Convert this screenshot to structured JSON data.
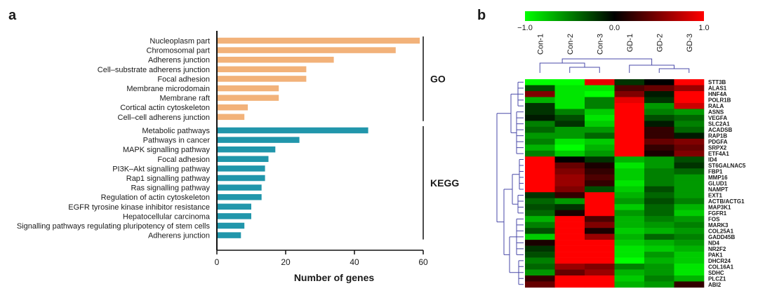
{
  "panels": {
    "a": "a",
    "b": "b"
  },
  "chart_data": [
    {
      "type": "bar",
      "panel": "a",
      "orientation": "horizontal",
      "xlabel": "Number of genes",
      "xlim": [
        0,
        60
      ],
      "xticks": [
        "0",
        "20",
        "40",
        "60"
      ],
      "groups": [
        {
          "name": "GO",
          "color": "#f2b27a",
          "categories": [
            "Nucleoplasm part",
            "Chromosomal part",
            "Adherens junction",
            "Cell–substrate adherens junction",
            "Focal adhesion",
            "Membrane microdomain",
            "Membrane raft",
            "Cortical actin cytoskeleton",
            "Cell–cell adherens junction"
          ],
          "values": [
            59,
            52,
            34,
            26,
            26,
            18,
            18,
            9,
            8
          ]
        },
        {
          "name": "KEGG",
          "color": "#2196ab",
          "categories": [
            "Metabolic pathways",
            "Pathways in cancer",
            "MAPK signalling pathway",
            "Focal adhesion",
            "PI3K–Akt signalling pathway",
            "Rap1 signalling pathway",
            "Ras signalling pathway",
            "Regulation of actin cytoskeleton",
            "EGFR tyrosine kinase inhibitor resistance",
            "Hepatocellular carcinoma",
            "Signalling pathways regulating pluripotency of stem cells",
            "Adherens junction"
          ],
          "values": [
            44,
            24,
            17,
            15,
            14,
            14,
            13,
            13,
            10,
            10,
            8,
            7
          ]
        }
      ]
    },
    {
      "type": "heatmap",
      "panel": "b",
      "colorbar": {
        "min_label": "−1.0",
        "mid_label": "0.0",
        "max_label": "1.0",
        "range": [
          -1,
          1
        ],
        "colors": [
          "#00ff00",
          "#000000",
          "#ff0000"
        ]
      },
      "columns": [
        "Con-1",
        "Con-2",
        "Con-3",
        "GD-1",
        "GD-2",
        "GD-3"
      ],
      "rows": [
        "STT3B",
        "ALAS1",
        "HNF4A",
        "POLR1B",
        "RALA",
        "ASNS",
        "VEGFA",
        "SLC2A1",
        "ACADSB",
        "RAP1B",
        "PDGFA",
        "SRPX2",
        "ETF4A1",
        "ID4",
        "ST6GALNAC5",
        "FBP1",
        "MMP16",
        "GLUD1",
        "NAMPT",
        "EXT1",
        "ACTB/ACTG1",
        "MAP3K1",
        "FGFR1",
        "FOS",
        "MARK3",
        "COL25A1",
        "GADD45B",
        "ND4",
        "NR2F2",
        "PAK1",
        "DHCR24",
        "COL16A1",
        "SDHC",
        "PLCZ1",
        "ABI2"
      ],
      "values": [
        [
          -1.0,
          -1.0,
          0.9,
          -0.2,
          0.0,
          1.0
        ],
        [
          -0.3,
          -0.9,
          -0.9,
          0.3,
          0.4,
          0.6
        ],
        [
          0.5,
          -0.9,
          -1.0,
          0.5,
          -0.1,
          1.0
        ],
        [
          -0.7,
          -0.9,
          -0.5,
          0.9,
          -0.2,
          1.0
        ],
        [
          -0.2,
          -0.9,
          -0.5,
          1.0,
          -0.6,
          0.8
        ],
        [
          -0.2,
          -0.5,
          -0.8,
          1.0,
          -0.5,
          -0.6
        ],
        [
          -0.1,
          -0.3,
          -0.9,
          1.0,
          -0.3,
          -0.4
        ],
        [
          -0.5,
          -0.2,
          -0.8,
          1.0,
          -0.1,
          -0.5
        ],
        [
          -0.4,
          -0.6,
          -0.6,
          1.0,
          0.2,
          -0.4
        ],
        [
          -0.6,
          -0.6,
          -0.4,
          1.0,
          0.2,
          -0.1
        ],
        [
          -0.5,
          -0.9,
          -0.8,
          1.0,
          0.4,
          0.5
        ],
        [
          -0.7,
          -1.0,
          -0.7,
          1.0,
          0.2,
          0.4
        ],
        [
          -0.5,
          -0.8,
          -0.6,
          1.0,
          0.1,
          0.5
        ],
        [
          1.0,
          0.0,
          -0.2,
          -0.7,
          -0.6,
          -0.3
        ],
        [
          1.0,
          0.4,
          0.1,
          -0.9,
          -0.6,
          -0.2
        ],
        [
          1.0,
          0.5,
          0.2,
          -0.8,
          -0.5,
          -0.4
        ],
        [
          1.0,
          0.6,
          0.3,
          -0.8,
          -0.5,
          -0.6
        ],
        [
          1.0,
          0.6,
          0.2,
          -0.9,
          -0.5,
          -0.6
        ],
        [
          1.0,
          0.5,
          -0.3,
          -0.8,
          -0.3,
          -0.6
        ],
        [
          -0.2,
          0.2,
          1.0,
          -0.7,
          -0.4,
          -0.6
        ],
        [
          -0.4,
          -0.6,
          1.0,
          -0.6,
          -0.3,
          -0.5
        ],
        [
          -0.3,
          -0.2,
          1.0,
          -0.8,
          -0.4,
          -0.7
        ],
        [
          -0.4,
          0.1,
          1.0,
          -0.6,
          -0.4,
          -0.8
        ],
        [
          -0.7,
          1.0,
          0.3,
          -0.7,
          -0.5,
          -0.6
        ],
        [
          -0.5,
          1.0,
          0.5,
          -0.7,
          -0.6,
          -0.5
        ],
        [
          -0.3,
          1.0,
          0.1,
          -0.8,
          -0.7,
          -0.6
        ],
        [
          -0.8,
          1.0,
          0.6,
          -0.7,
          -0.4,
          -0.5
        ],
        [
          0.1,
          1.0,
          1.0,
          -0.8,
          -0.7,
          -0.6
        ],
        [
          -0.2,
          1.0,
          1.0,
          -0.9,
          -0.8,
          -0.7
        ],
        [
          -0.3,
          1.0,
          1.0,
          -0.9,
          -0.6,
          -0.8
        ],
        [
          -0.5,
          1.0,
          1.0,
          -1.0,
          -0.7,
          -0.8
        ],
        [
          -0.4,
          0.6,
          0.5,
          -0.5,
          -0.6,
          -0.9
        ],
        [
          -0.6,
          0.4,
          0.6,
          -0.7,
          -0.6,
          -0.9
        ],
        [
          0.2,
          1.0,
          1.0,
          -0.8,
          -0.5,
          -0.7
        ],
        [
          0.4,
          1.0,
          1.0,
          -0.7,
          -0.6,
          0.2
        ]
      ]
    }
  ]
}
